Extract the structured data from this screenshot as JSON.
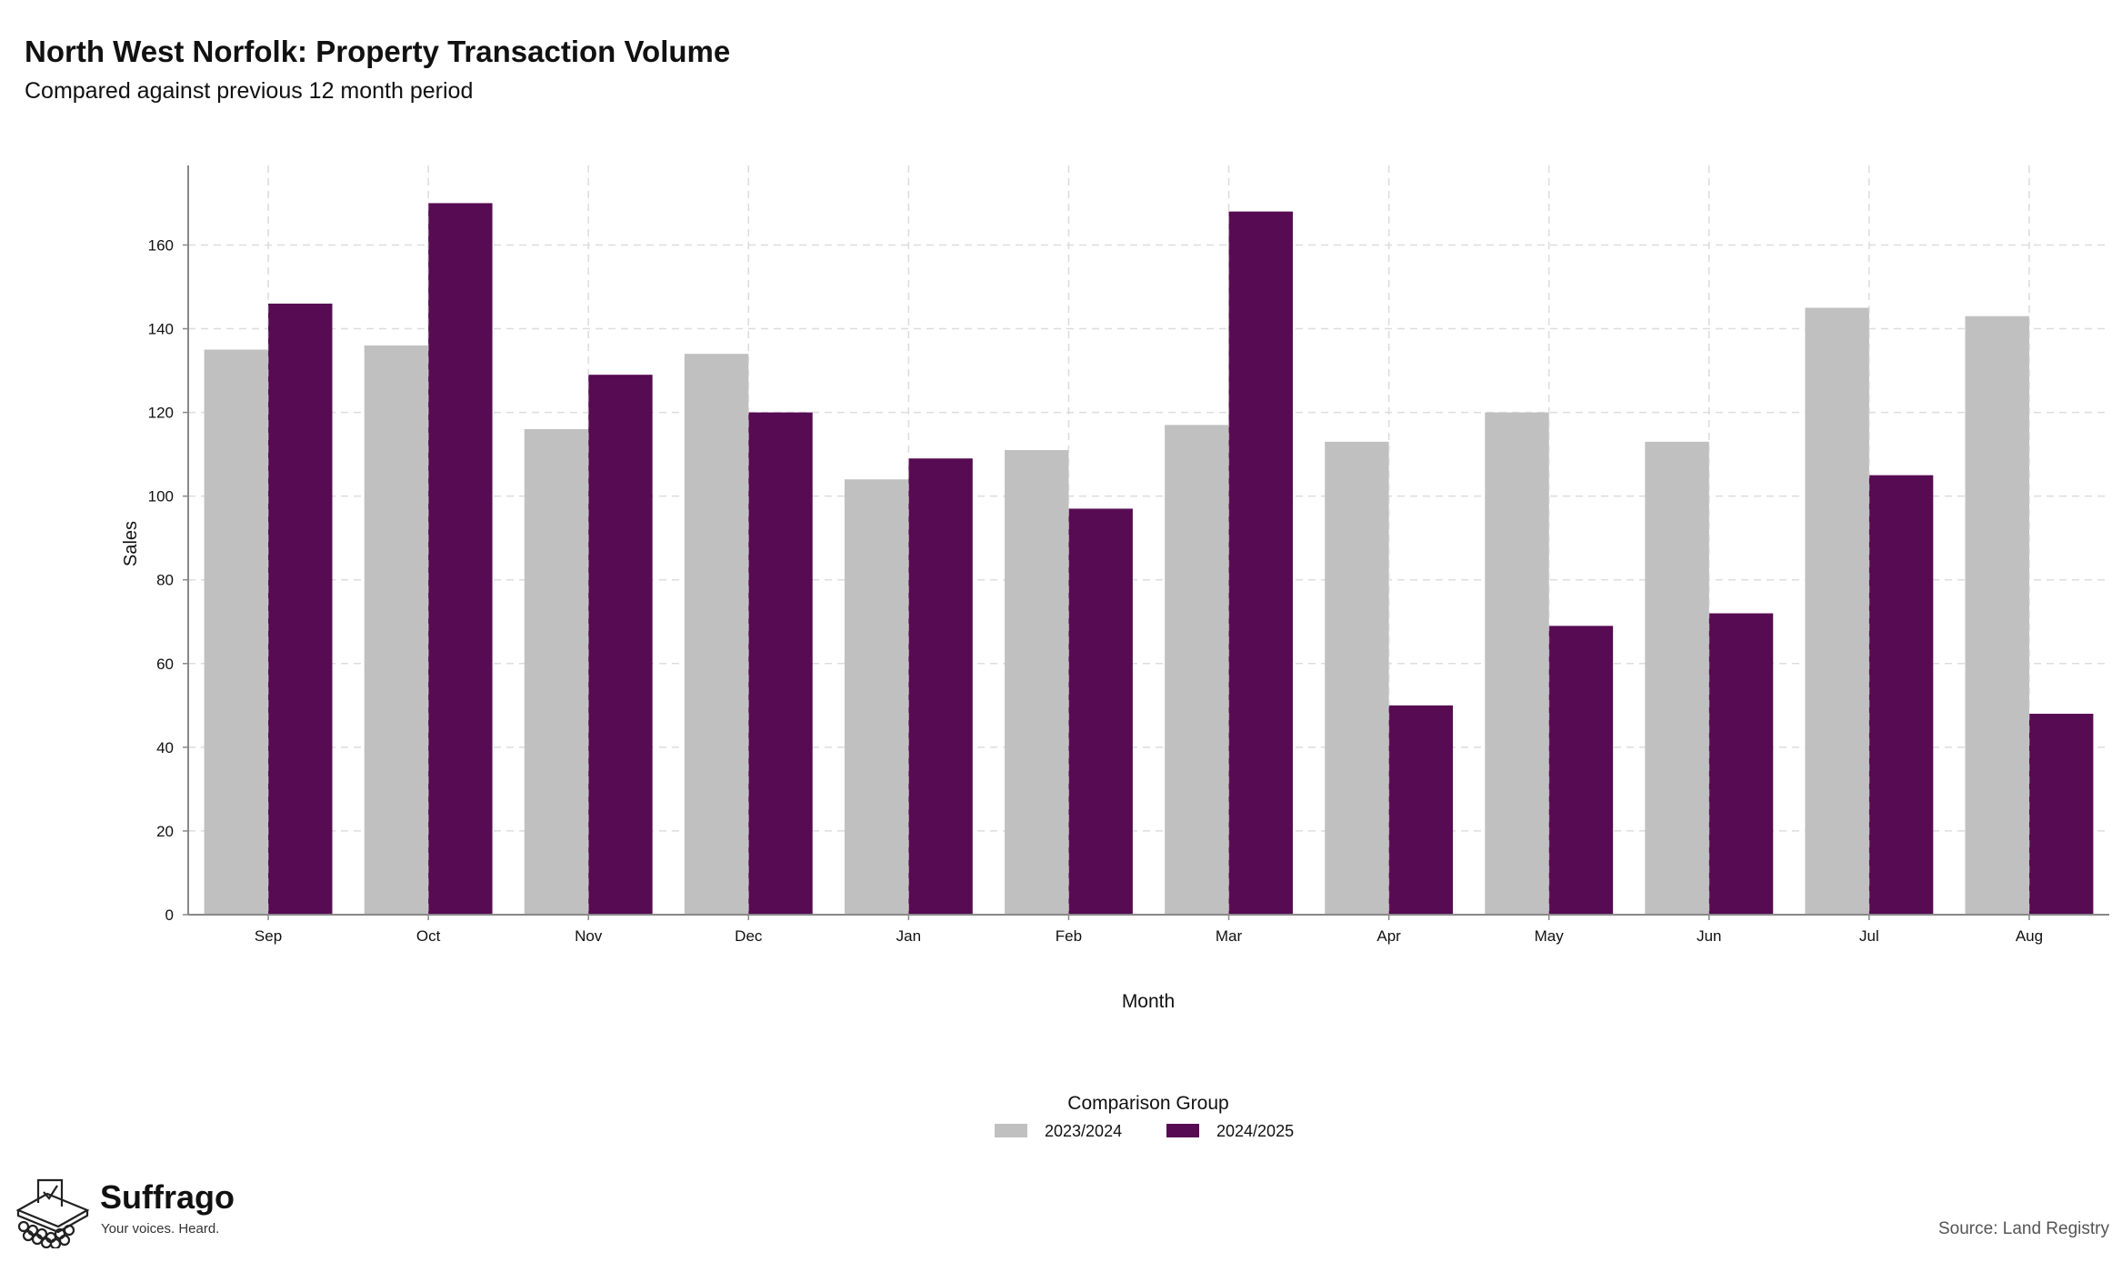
{
  "chart_data": {
    "type": "bar",
    "title": "North West Norfolk: Property Transaction Volume",
    "subtitle": "Compared against previous 12 month period",
    "xlabel": "Month",
    "ylabel": "Sales",
    "categories": [
      "Sep",
      "Oct",
      "Nov",
      "Dec",
      "Jan",
      "Feb",
      "Mar",
      "Apr",
      "May",
      "Jun",
      "Jul",
      "Aug"
    ],
    "series": [
      {
        "name": "2023/2024",
        "color": "#c0c0c0",
        "values": [
          135,
          136,
          116,
          134,
          104,
          111,
          117,
          113,
          120,
          113,
          145,
          143
        ]
      },
      {
        "name": "2024/2025",
        "color": "#560b52",
        "values": [
          146,
          170,
          129,
          120,
          109,
          97,
          168,
          50,
          69,
          72,
          105,
          48
        ]
      }
    ],
    "ylim": [
      0,
      179
    ],
    "yticks": [
      0,
      20,
      40,
      60,
      80,
      100,
      120,
      140,
      160
    ],
    "grid": true,
    "legend": {
      "title": "Comparison Group",
      "position": "bottom"
    }
  },
  "branding": {
    "name": "Suffrago",
    "tagline": "Your voices. Heard.",
    "icon": "ballot-box-icon"
  },
  "footer": {
    "source": "Source: Land Registry"
  }
}
